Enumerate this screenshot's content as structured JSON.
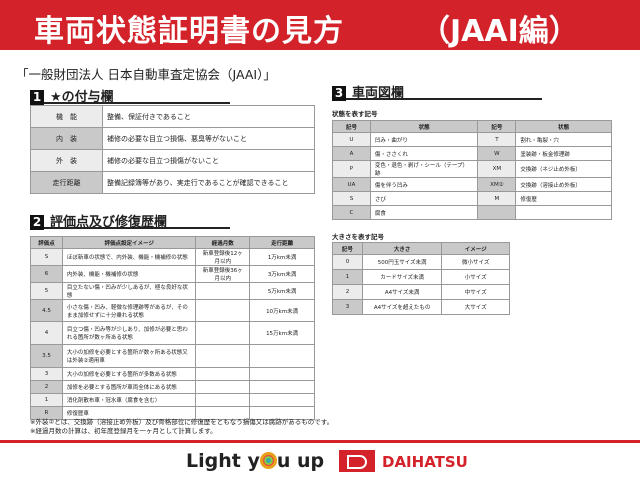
{
  "header": {
    "title": "車両状態証明書の見方",
    "title_suffix": "（JAAI編）"
  },
  "organization": "「一般財団法人 日本自動車査定協会（JAAI）」",
  "section1": {
    "num": "1",
    "title": "★の付与欄",
    "rows": [
      [
        "機　能",
        "整備、保証付きであること"
      ],
      [
        "内　装",
        "補修の必要な目立つ損傷、悪臭等がないこと"
      ],
      [
        "外　装",
        "補修の必要な目立つ損傷がないこと"
      ],
      [
        "走行距離",
        "整備記録簿等があり、実走行であることが確認できること"
      ]
    ]
  },
  "section2": {
    "num": "2",
    "title": "評価点及び修復歴欄",
    "headers": [
      "評価点",
      "評価点設定イメージ",
      "経過月数",
      "走行距離"
    ],
    "rows": [
      [
        "S",
        "ほぼ新車の状態で、内外装、機能・機補修の状態",
        "新車登録後12ヶ月以内",
        "1万km未満"
      ],
      [
        "6",
        "内外装、機能・機補修の状態",
        "新車登録後36ヶ月以内",
        "3万km未満"
      ],
      [
        "5",
        "目立たない傷・凹みが少しあるが、極な良好な状態",
        "",
        "5万km未満"
      ],
      [
        "4.5",
        "小さな傷・凹み、軽微な修理跡等があるが、そのまま加修せずに十分乗れる状態",
        "",
        "10万km未満"
      ],
      [
        "4",
        "目立つ傷・凹み等が少しあり、加修が必要と思われる箇所が数ヶ所ある状態",
        "",
        "15万km未満"
      ],
      [
        "3.5",
        "大小の加修を必要とする箇所が数ヶ所ある状態又は外装②適用車",
        "",
        ""
      ],
      [
        "3",
        "大小の加修を必要とする箇所が多数ある状態",
        "",
        ""
      ],
      [
        "2",
        "加修を必要とする箇所が車両全体にある状態",
        "",
        ""
      ],
      [
        "1",
        "消化剤散布車・冠水車（腐食を含む）",
        "",
        ""
      ],
      [
        "R",
        "修復歴車",
        "",
        ""
      ]
    ]
  },
  "section3": {
    "num": "3",
    "title": "車両図欄",
    "state_label": "状態を表す記号",
    "state_headers": [
      "記号",
      "状態",
      "記号",
      "状態"
    ],
    "state_rows": [
      [
        "U",
        "凹み・曲がり",
        "T",
        "割れ・亀裂・穴"
      ],
      [
        "A",
        "傷・ささくれ",
        "W",
        "塗装跡・板金修理跡"
      ],
      [
        "P",
        "変色・退色・剥げ・シール（テープ）跡",
        "XM",
        "交換跡（ネジ止め外板）"
      ],
      [
        "UA",
        "傷を伴う凹み",
        "XM②",
        "交換跡（溶接止め外板）"
      ],
      [
        "S",
        "さび",
        "M",
        "修復歴"
      ],
      [
        "C",
        "腐食",
        "",
        ""
      ]
    ],
    "size_label": "大きさを表す記号",
    "size_headers": [
      "記号",
      "大きさ",
      "イメージ"
    ],
    "size_rows": [
      [
        "0",
        "500円玉サイズ未満",
        "微小サイズ"
      ],
      [
        "1",
        "カードサイズ未満",
        "小サイズ"
      ],
      [
        "2",
        "A4サイズ未満",
        "中サイズ"
      ],
      [
        "3",
        "A4サイズを超えたもの",
        "大サイズ"
      ]
    ]
  },
  "notes": [
    "※外装②とは、交換跡（溶接止め外板）及び骨格部位に修復歴をともなう損傷又は腐跡があるものです。",
    "※経過月数の計算は、初年度登録月を一ヶ月として計算します。"
  ],
  "footer": {
    "slogan_pre": "Light y",
    "slogan_post": "u up",
    "brand": "DAIHATSU"
  },
  "colors": {
    "brand_red": "#d3222a",
    "cell_dark": "#c9c9c9",
    "cell_light": "#ececec"
  }
}
